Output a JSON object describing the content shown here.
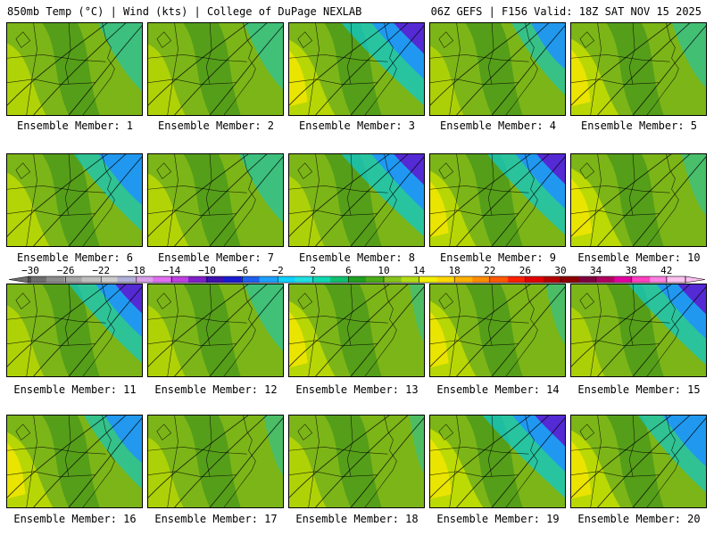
{
  "header": {
    "left": "850mb Temp (°C) | Wind (kts) | College of DuPage NEXLAB",
    "right": "06Z GEFS | F156 Valid: 18Z SAT NOV 15 2025"
  },
  "panels": [
    {
      "label": "Ensemble Member: 1",
      "warm": 0.35,
      "cold": 0.45
    },
    {
      "label": "Ensemble Member: 2",
      "warm": 0.3,
      "cold": 0.4
    },
    {
      "label": "Ensemble Member: 3",
      "warm": 0.55,
      "cold": 0.85
    },
    {
      "label": "Ensemble Member: 4",
      "warm": 0.2,
      "cold": 0.55
    },
    {
      "label": "Ensemble Member: 5",
      "warm": 0.6,
      "cold": 0.35
    },
    {
      "label": "Ensemble Member: 6",
      "warm": 0.45,
      "cold": 0.7
    },
    {
      "label": "Ensemble Member: 7",
      "warm": 0.4,
      "cold": 0.45
    },
    {
      "label": "Ensemble Member: 8",
      "warm": 0.25,
      "cold": 0.85
    },
    {
      "label": "Ensemble Member: 9",
      "warm": 0.55,
      "cold": 0.8
    },
    {
      "label": "Ensemble Member: 10",
      "warm": 0.7,
      "cold": 0.25
    },
    {
      "label": "Ensemble Member: 11",
      "warm": 0.3,
      "cold": 0.75
    },
    {
      "label": "Ensemble Member: 12",
      "warm": 0.3,
      "cold": 0.4
    },
    {
      "label": "Ensemble Member: 13",
      "warm": 0.55,
      "cold": 0.15
    },
    {
      "label": "Ensemble Member: 14",
      "warm": 0.55,
      "cold": 0.2
    },
    {
      "label": "Ensemble Member: 15",
      "warm": 0.2,
      "cold": 0.8
    },
    {
      "label": "Ensemble Member: 16",
      "warm": 0.55,
      "cold": 0.6
    },
    {
      "label": "Ensemble Member: 17",
      "warm": 0.25,
      "cold": 0.2
    },
    {
      "label": "Ensemble Member: 18",
      "warm": 0.3,
      "cold": 0.15
    },
    {
      "label": "Ensemble Member: 19",
      "warm": 0.75,
      "cold": 0.85
    },
    {
      "label": "Ensemble Member: 20",
      "warm": 0.65,
      "cold": 0.7
    }
  ],
  "colorbar": {
    "ticks": [
      "−30",
      "−26",
      "−22",
      "−18",
      "−14",
      "−10",
      "−6",
      "−2",
      "2",
      "6",
      "10",
      "14",
      "18",
      "22",
      "26",
      "30",
      "34",
      "38",
      "42"
    ],
    "colors": [
      "#6e6e6e",
      "#8c8c8c",
      "#a6a6a6",
      "#bfbfbf",
      "#cccccc",
      "#b0b0d8",
      "#d8a0e8",
      "#e070f0",
      "#c040e0",
      "#8020c8",
      "#4010b0",
      "#1a1ad0",
      "#2060f0",
      "#1ea0ff",
      "#10d0ff",
      "#20e0e0",
      "#10d8b0",
      "#10c070",
      "#20a020",
      "#4cac18",
      "#86c41c",
      "#b4dc14",
      "#f0f000",
      "#ffd700",
      "#ffb000",
      "#ff8c00",
      "#ff5a00",
      "#ff2000",
      "#e00000",
      "#b40000",
      "#8c0000",
      "#800040",
      "#b00060",
      "#e000a0",
      "#ff40c0",
      "#ff80e0",
      "#ffc0f0"
    ]
  }
}
